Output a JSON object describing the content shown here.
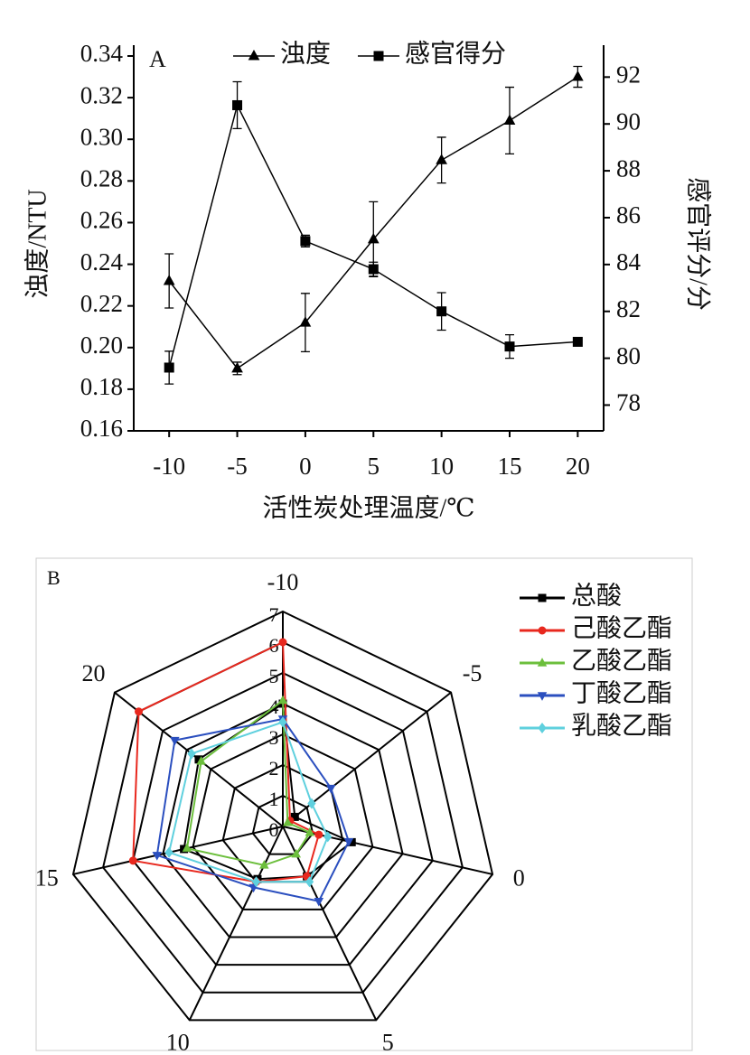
{
  "chart_data": [
    {
      "type": "line",
      "panel": "A",
      "x_label": "活性炭处理温度/℃",
      "y_label": "浊度/NTU",
      "y2_label": "感官评分/分",
      "x": [
        -10,
        -5,
        0,
        5,
        10,
        15,
        20
      ],
      "xlim": [
        -12.6,
        21.9
      ],
      "xticks": [
        -10,
        -5,
        0,
        5,
        10,
        15,
        20
      ],
      "ylim": [
        0.16,
        0.34
      ],
      "yticks": [
        {
          "value": 0.16,
          "label": "0.16"
        },
        {
          "value": 0.18,
          "label": "0.18"
        },
        {
          "value": 0.2,
          "label": "0.20"
        },
        {
          "value": 0.22,
          "label": "0.22"
        },
        {
          "value": 0.24,
          "label": "0.24"
        },
        {
          "value": 0.26,
          "label": "0.26"
        },
        {
          "value": 0.28,
          "label": "0.28"
        },
        {
          "value": 0.3,
          "label": "0.30"
        },
        {
          "value": 0.32,
          "label": "0.32"
        },
        {
          "value": 0.34,
          "label": "0.34"
        }
      ],
      "y2lim": [
        76.9,
        92.9
      ],
      "y2ticks": [
        78,
        80,
        82,
        84,
        86,
        88,
        90,
        92
      ],
      "series": [
        {
          "name": "浊度",
          "color": "#000000",
          "marker": "triangle",
          "values": [
            0.232,
            0.19,
            0.212,
            0.252,
            0.29,
            0.309,
            0.33
          ],
          "errors": [
            0.013,
            0.003,
            0.014,
            0.018,
            0.011,
            0.016,
            0.005
          ]
        },
        {
          "name": "感官得分",
          "color": "#000000",
          "marker": "square",
          "axis": "y2",
          "values": [
            79.6,
            90.8,
            85.0,
            83.8,
            82.0,
            80.5,
            80.7
          ],
          "errors": [
            0.7,
            1.0,
            0.25,
            0.3,
            0.8,
            0.5,
            0.1
          ]
        }
      ]
    },
    {
      "type": "radar",
      "panel": "B",
      "categories": [
        "-10",
        "-5",
        "0",
        "5",
        "10",
        "15",
        "20"
      ],
      "rlim": [
        0,
        7
      ],
      "rticks": [
        0,
        1,
        2,
        3,
        4,
        5,
        6,
        7
      ],
      "series": [
        {
          "name": "总酸",
          "color": "#000000",
          "marker": "square",
          "values": [
            4.0,
            0.5,
            2.3,
            1.8,
            1.9,
            3.3,
            3.5
          ]
        },
        {
          "name": "己酸乙酯",
          "color": "#e8281e",
          "marker": "circle",
          "values": [
            6.0,
            0.3,
            1.2,
            1.8,
            2.0,
            5.0,
            6.0
          ]
        },
        {
          "name": "乙酸乙酯",
          "color": "#6cbf3c",
          "marker": "triangle",
          "values": [
            4.1,
            0.2,
            0.9,
            1.0,
            1.4,
            3.2,
            3.4
          ]
        },
        {
          "name": "丁酸乙酯",
          "color": "#2b4fbf",
          "marker": "triangle-down",
          "values": [
            3.5,
            2.0,
            2.2,
            2.7,
            2.2,
            4.2,
            4.5
          ]
        },
        {
          "name": "乳酸乙酯",
          "color": "#5fd0de",
          "marker": "diamond",
          "values": [
            3.4,
            1.2,
            1.5,
            2.0,
            2.0,
            3.8,
            3.8
          ]
        }
      ]
    }
  ]
}
